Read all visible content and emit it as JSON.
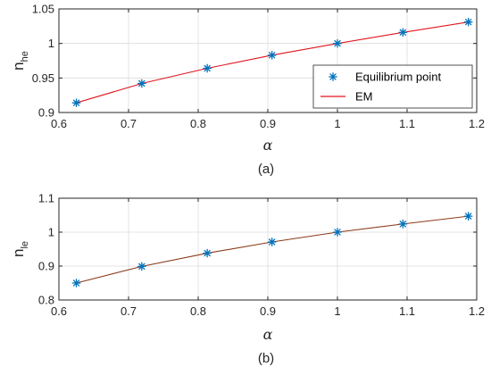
{
  "chart_data": [
    {
      "type": "scatter",
      "caption": "(a)",
      "xlabel": "α",
      "ylabel_main": "n",
      "ylabel_sub": "he",
      "xlim": [
        0.6,
        1.2
      ],
      "ylim": [
        0.9,
        1.05
      ],
      "xticks": [
        0.6,
        0.7,
        0.8,
        0.9,
        1,
        1.1,
        1.2
      ],
      "yticks": [
        0.9,
        0.95,
        1,
        1.05
      ],
      "grid": true,
      "legend_position": "bottom-right",
      "series": [
        {
          "name": "Equilibrium point",
          "kind": "marker",
          "marker": "asterisk",
          "color": "#0072bd",
          "x": [
            0.625,
            0.719,
            0.813,
            0.906,
            1.0,
            1.094,
            1.188
          ],
          "y": [
            0.914,
            0.942,
            0.964,
            0.983,
            1.0,
            1.016,
            1.031
          ]
        },
        {
          "name": "EM",
          "kind": "line",
          "color": "#e0151e",
          "x": [
            0.625,
            0.719,
            0.813,
            0.906,
            1.0,
            1.094,
            1.188
          ],
          "y": [
            0.914,
            0.942,
            0.964,
            0.983,
            1.0,
            1.016,
            1.031
          ]
        }
      ]
    },
    {
      "type": "scatter",
      "caption": "(b)",
      "xlabel": "α",
      "ylabel_main": "n",
      "ylabel_sub": "le",
      "xlim": [
        0.6,
        1.2
      ],
      "ylim": [
        0.8,
        1.1
      ],
      "xticks": [
        0.6,
        0.7,
        0.8,
        0.9,
        1,
        1.1,
        1.2
      ],
      "yticks": [
        0.8,
        0.9,
        1,
        1.1
      ],
      "grid": true,
      "series": [
        {
          "kind": "marker",
          "marker": "asterisk",
          "color": "#0072bd",
          "x": [
            0.625,
            0.719,
            0.813,
            0.906,
            1.0,
            1.094,
            1.188
          ],
          "y": [
            0.85,
            0.899,
            0.938,
            0.971,
            1.0,
            1.024,
            1.047
          ]
        },
        {
          "kind": "line",
          "color": "#8b3a1a",
          "x": [
            0.625,
            0.719,
            0.813,
            0.906,
            1.0,
            1.094,
            1.188
          ],
          "y": [
            0.85,
            0.899,
            0.938,
            0.971,
            1.0,
            1.024,
            1.047
          ]
        }
      ]
    }
  ]
}
